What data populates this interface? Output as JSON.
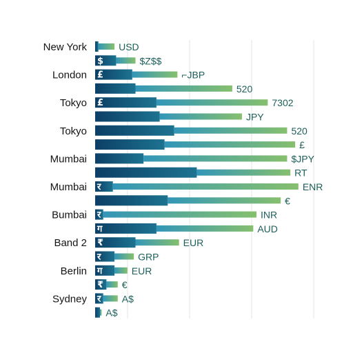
{
  "chart_data": {
    "type": "bar",
    "orientation": "horizontal",
    "stacked": true,
    "grid": true,
    "xlim": [
      0,
      100
    ],
    "city_labels": [
      "New York",
      "London",
      "Tokyo",
      "Tokyo",
      "Mumbai",
      "Mumbai",
      "Bumbai",
      "Band 2",
      "Berlin",
      "Sydney"
    ],
    "bars": [
      {
        "city": "New York",
        "glyph": "",
        "dark": 2,
        "light": 10,
        "label": "USD"
      },
      {
        "city": "",
        "glyph": "$",
        "dark": 13,
        "light": 12,
        "label": "$Z$$"
      },
      {
        "city": "London",
        "glyph": "£",
        "dark": 23,
        "light": 28,
        "label": "⌐JBP"
      },
      {
        "city": "",
        "glyph": "",
        "dark": 25,
        "light": 60,
        "label": "520"
      },
      {
        "city": "Tokyo",
        "glyph": "£",
        "dark": 38,
        "light": 69,
        "label": "7302"
      },
      {
        "city": "",
        "glyph": "",
        "dark": 40,
        "light": 51,
        "label": "JPY"
      },
      {
        "city": "Tokyo",
        "glyph": "",
        "dark": 49,
        "light": 70,
        "label": "520"
      },
      {
        "city": "",
        "glyph": "",
        "dark": 43,
        "light": 81,
        "label": "£"
      },
      {
        "city": "Mumbai",
        "glyph": "",
        "dark": 30,
        "light": 89,
        "label": "$JPY"
      },
      {
        "city": "",
        "glyph": "",
        "dark": 63,
        "light": 58,
        "label": "RT"
      },
      {
        "city": "Mumbai",
        "glyph": "र",
        "dark": 11,
        "light": 115,
        "label": "ENR"
      },
      {
        "city": "",
        "glyph": "",
        "dark": 45,
        "light": 70,
        "label": "€"
      },
      {
        "city": "Bumbai",
        "glyph": "र",
        "dark": 5,
        "light": 95,
        "label": "INR"
      },
      {
        "city": "",
        "glyph": "ग",
        "dark": 38,
        "light": 60,
        "label": "AUD"
      },
      {
        "city": "Band 2",
        "glyph": "₹",
        "dark": 25,
        "light": 27,
        "label": "EUR"
      },
      {
        "city": "",
        "glyph": "र",
        "dark": 12,
        "light": 12,
        "label": "GRP"
      },
      {
        "city": "Berlin",
        "glyph": "ग",
        "dark": 12,
        "light": 8,
        "label": "EUR"
      },
      {
        "city": "",
        "glyph": "₹",
        "dark": 7,
        "light": 7,
        "label": "€"
      },
      {
        "city": "Sydney",
        "glyph": "र",
        "dark": 5,
        "light": 9,
        "label": "A$"
      },
      {
        "city": "",
        "glyph": "",
        "dark": 3,
        "light": 1,
        "label": "A$"
      }
    ],
    "colors": {
      "dark_start": "#0c3f66",
      "dark_end": "#1d7390",
      "light_start": "#3296b8",
      "light_end": "#86c06e",
      "grid": "#e6e6e6",
      "label": "#1c5f5a",
      "city": "#141414"
    }
  }
}
